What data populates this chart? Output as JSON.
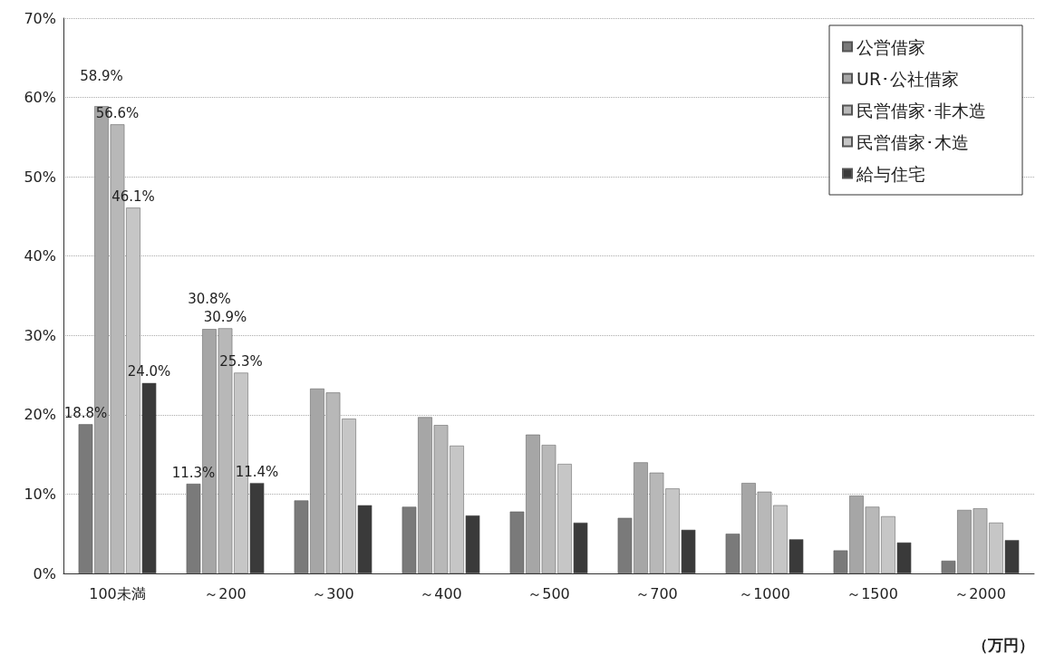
{
  "chart_data": {
    "type": "bar",
    "xlabel": "（万円）",
    "categories": [
      "100未満",
      "～200",
      "～300",
      "～400",
      "～500",
      "～700",
      "～1000",
      "～1500",
      "～2000"
    ],
    "series": [
      {
        "name": "公営借家",
        "color": "#7a7a7a",
        "values": [
          18.8,
          11.3,
          9.2,
          8.4,
          7.8,
          7.0,
          5.0,
          2.9,
          1.6
        ],
        "value_labels": [
          "18.8%",
          "11.3%",
          null,
          null,
          null,
          null,
          null,
          null,
          null
        ]
      },
      {
        "name": "UR･公社借家",
        "color": "#a6a6a6",
        "values": [
          58.9,
          30.8,
          23.3,
          19.7,
          17.5,
          14.0,
          11.4,
          9.8,
          8.0
        ],
        "value_labels": [
          "58.9%",
          "30.8%",
          null,
          null,
          null,
          null,
          null,
          null,
          null
        ]
      },
      {
        "name": "民営借家･非木造",
        "color": "#b8b8b8",
        "values": [
          56.6,
          30.9,
          22.8,
          18.7,
          16.2,
          12.7,
          10.3,
          8.4,
          8.2
        ],
        "value_labels": [
          "56.6%",
          "30.9%",
          null,
          null,
          null,
          null,
          null,
          null,
          null
        ]
      },
      {
        "name": "民営借家･木造",
        "color": "#c6c6c6",
        "values": [
          46.1,
          25.3,
          19.5,
          16.1,
          13.8,
          10.7,
          8.6,
          7.2,
          6.4
        ],
        "value_labels": [
          "46.1%",
          "25.3%",
          null,
          null,
          null,
          null,
          null,
          null,
          null
        ]
      },
      {
        "name": "給与住宅",
        "color": "#3a3a3a",
        "values": [
          24.0,
          11.4,
          8.6,
          7.3,
          6.4,
          5.5,
          4.3,
          3.9,
          4.2
        ],
        "value_labels": [
          "24.0%",
          "11.4%",
          null,
          null,
          null,
          null,
          null,
          null,
          null
        ]
      }
    ],
    "ylim": [
      0,
      70
    ],
    "yticks": [
      {
        "value": 0,
        "label": "0%"
      },
      {
        "value": 10,
        "label": "10%"
      },
      {
        "value": 20,
        "label": "20%"
      },
      {
        "value": 30,
        "label": "30%"
      },
      {
        "value": 40,
        "label": "40%"
      },
      {
        "value": 50,
        "label": "50%"
      },
      {
        "value": 60,
        "label": "60%"
      },
      {
        "value": 70,
        "label": "70%"
      }
    ],
    "grid": "y",
    "legend": "top right"
  }
}
